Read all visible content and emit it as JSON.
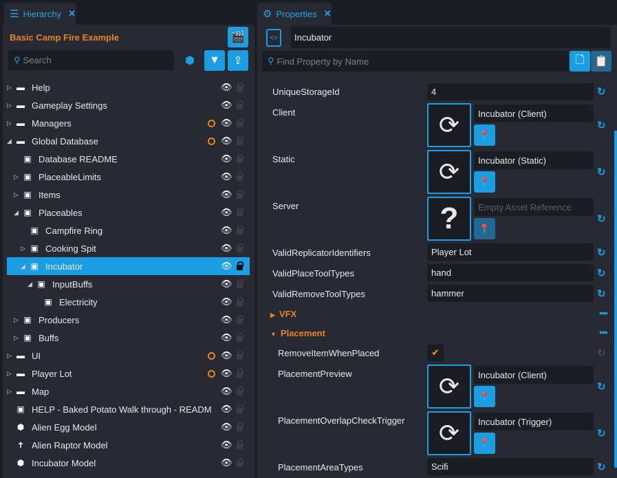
{
  "hierarchy": {
    "tab_label": "Hierarchy",
    "project_title": "Basic Camp Fire Example",
    "search_placeholder": "Search",
    "items": [
      {
        "label": "Help",
        "depth": 0,
        "expander": "right",
        "icon": "folder-icon"
      },
      {
        "label": "Gameplay Settings",
        "depth": 0,
        "expander": "right",
        "icon": "folder-icon"
      },
      {
        "label": "Managers",
        "depth": 0,
        "expander": "right",
        "icon": "folder-icon",
        "modified": true
      },
      {
        "label": "Global Database",
        "depth": 0,
        "expander": "down",
        "icon": "folder-icon",
        "modified": true
      },
      {
        "label": "Database README",
        "depth": 1,
        "expander": "none",
        "icon": "script-icon"
      },
      {
        "label": "PlaceableLimits",
        "depth": 1,
        "expander": "right",
        "icon": "script-icon"
      },
      {
        "label": "Items",
        "depth": 1,
        "expander": "right",
        "icon": "script-icon"
      },
      {
        "label": "Placeables",
        "depth": 1,
        "expander": "down",
        "icon": "script-icon"
      },
      {
        "label": "Campfire Ring",
        "depth": 2,
        "expander": "none",
        "icon": "script-icon"
      },
      {
        "label": "Cooking Spit",
        "depth": 2,
        "expander": "right",
        "icon": "script-icon"
      },
      {
        "label": "Incubator",
        "depth": 2,
        "expander": "down",
        "icon": "script-icon",
        "selected": true
      },
      {
        "label": "InputBuffs",
        "depth": 3,
        "expander": "down",
        "icon": "script-icon"
      },
      {
        "label": "Electricity",
        "depth": 4,
        "expander": "none",
        "icon": "script-icon"
      },
      {
        "label": "Producers",
        "depth": 1,
        "expander": "right",
        "icon": "script-icon"
      },
      {
        "label": "Buffs",
        "depth": 1,
        "expander": "right",
        "icon": "script-icon"
      },
      {
        "label": "UI",
        "depth": 0,
        "expander": "right",
        "icon": "folder-icon",
        "modified": true
      },
      {
        "label": "Player Lot",
        "depth": 0,
        "expander": "right",
        "icon": "folder-icon",
        "modified": true
      },
      {
        "label": "Map",
        "depth": 0,
        "expander": "right",
        "icon": "folder-icon"
      },
      {
        "label": "HELP - Baked Potato Walk through - READM",
        "depth": 0,
        "expander": "none",
        "icon": "script-icon"
      },
      {
        "label": "Alien Egg Model",
        "depth": 0,
        "expander": "none",
        "icon": "cube-icon"
      },
      {
        "label": "Alien Raptor Model",
        "depth": 0,
        "expander": "none",
        "icon": "person-icon"
      },
      {
        "label": "Incubator Model",
        "depth": 0,
        "expander": "none",
        "icon": "cube-icon"
      }
    ]
  },
  "properties": {
    "tab_label": "Properties",
    "object_name": "Incubator",
    "find_placeholder": "Find Property by Name",
    "unique_storage_label": "UniqueStorageId",
    "unique_storage_value": "4",
    "client_label": "Client",
    "client_asset": "Incubator (Client)",
    "static_label": "Static",
    "static_asset": "Incubator (Static)",
    "server_label": "Server",
    "server_asset_placeholder": "Empty Asset Reference",
    "replicator_label": "ValidReplicatorIdentifiers",
    "replicator_value": "Player Lot",
    "place_tool_label": "ValidPlaceToolTypes",
    "place_tool_value": "hand",
    "remove_tool_label": "ValidRemoveToolTypes",
    "remove_tool_value": "hammer",
    "vfx_section": "VFX",
    "placement_section": "Placement",
    "remove_item_label": "RemoveItemWhenPlaced",
    "remove_item_checked": true,
    "preview_label": "PlacementPreview",
    "preview_asset": "Incubator (Client)",
    "overlap_label": "PlacementOverlapCheckTrigger",
    "overlap_asset": "Incubator (Trigger)",
    "area_types_label": "PlacementAreaTypes",
    "area_types_value": "Scifi"
  },
  "colors": {
    "accent": "#1b9ee4",
    "orange": "#e8841c",
    "panel": "#272a33",
    "field": "#1b1d23"
  }
}
